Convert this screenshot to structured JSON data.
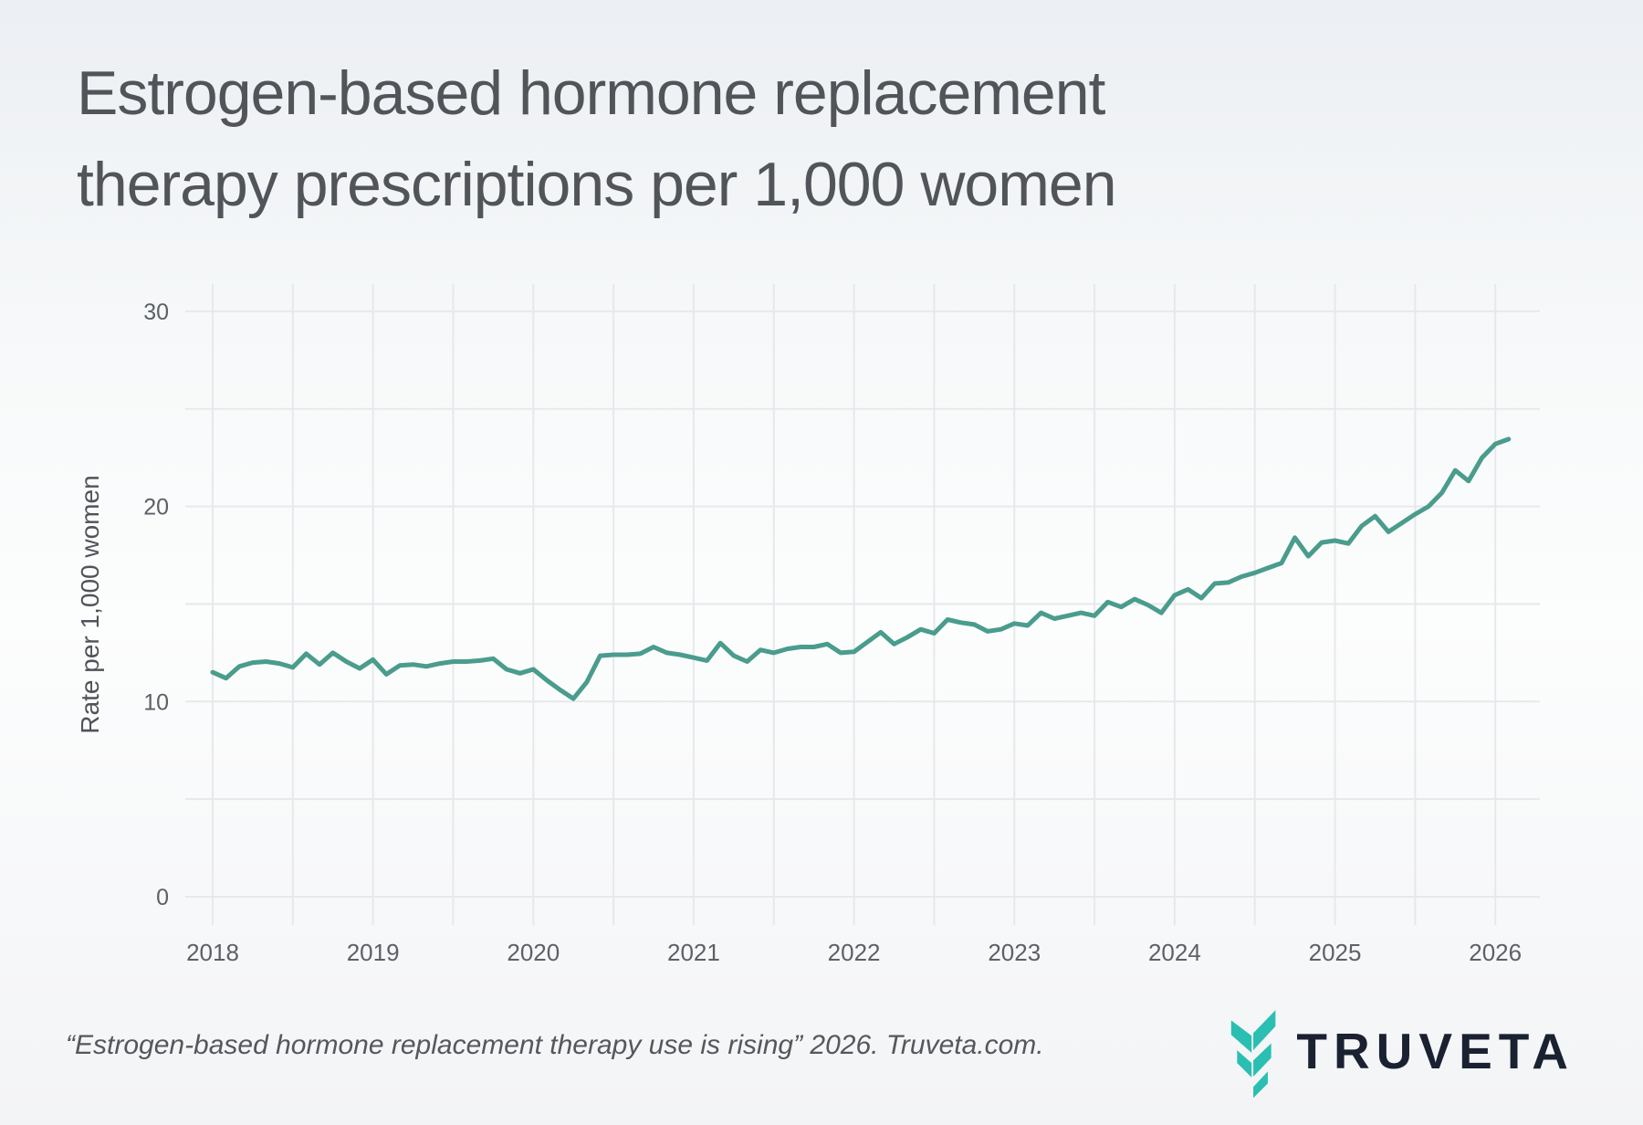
{
  "title": {
    "line1": "Estrogen-based hormone replacement",
    "line2": "therapy prescriptions per 1,000 women"
  },
  "citation": "“Estrogen-based hormone replacement therapy use is rising” 2026. Truveta.com.",
  "logo": {
    "brand": "TRUVETA",
    "mark_color": "#2abfb2",
    "text_color": "#1a2130"
  },
  "chart_data": {
    "type": "line",
    "title": "Estrogen-based hormone replacement therapy prescriptions per 1,000 women",
    "xlabel": "",
    "ylabel": "Rate per 1,000 women",
    "frequency": "monthly",
    "x_start": "2018-01",
    "x_end": "2026-02",
    "x_tick_labels": [
      "2018",
      "2019",
      "2020",
      "2021",
      "2022",
      "2023",
      "2024",
      "2025",
      "2026"
    ],
    "y_ticks": [
      0,
      10,
      20,
      30
    ],
    "y_gridlines": [
      0,
      5,
      10,
      15,
      20,
      25,
      30
    ],
    "ylim": [
      0,
      30
    ],
    "grid": true,
    "legend": "none",
    "line_color": "#4a9c8d",
    "gridline_color": "#e6e9ec",
    "tick_label_color": "#5d6065",
    "values": [
      11.5,
      11.2,
      11.8,
      12.0,
      12.05,
      11.95,
      11.75,
      12.45,
      11.9,
      12.5,
      12.05,
      11.7,
      12.15,
      11.4,
      11.85,
      11.9,
      11.8,
      11.95,
      12.05,
      12.05,
      12.1,
      12.2,
      11.65,
      11.45,
      11.65,
      11.1,
      10.6,
      10.15,
      11.0,
      12.35,
      12.4,
      12.4,
      12.45,
      12.8,
      12.5,
      12.4,
      12.25,
      12.1,
      13.0,
      12.35,
      12.05,
      12.65,
      12.5,
      12.7,
      12.8,
      12.8,
      12.95,
      12.5,
      12.55,
      13.05,
      13.55,
      12.95,
      13.3,
      13.7,
      13.5,
      14.2,
      14.05,
      13.95,
      13.6,
      13.7,
      14.0,
      13.9,
      14.55,
      14.25,
      14.4,
      14.55,
      14.4,
      15.1,
      14.85,
      15.25,
      14.95,
      14.55,
      15.45,
      15.75,
      15.3,
      16.05,
      16.1,
      16.4,
      16.6,
      16.85,
      17.1,
      18.4,
      17.45,
      18.15,
      18.25,
      18.1,
      19.0,
      19.5,
      18.7,
      19.15,
      19.6,
      20.0,
      20.7,
      21.85,
      21.3,
      22.5,
      23.2,
      23.45
    ]
  }
}
